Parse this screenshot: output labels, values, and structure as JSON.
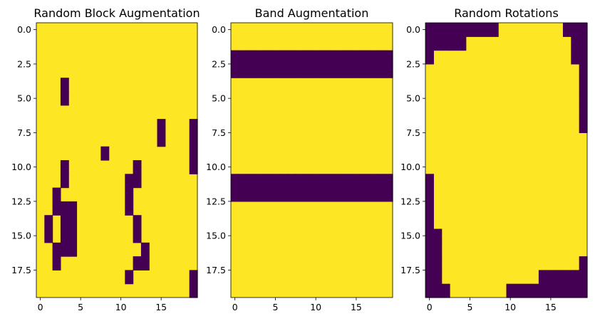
{
  "chart_data": [
    {
      "type": "heatmap",
      "title": "Random Block Augmentation",
      "rows": 20,
      "cols": 20,
      "xticks": [
        0,
        5,
        10,
        15
      ],
      "yticks": [
        0.0,
        2.5,
        5.0,
        7.5,
        10.0,
        12.5,
        15.0,
        17.5
      ],
      "xtick_labels": [
        "0",
        "5",
        "10",
        "15"
      ],
      "ytick_labels": [
        "0.0",
        "2.5",
        "5.0",
        "7.5",
        "10.0",
        "12.5",
        "15.0",
        "17.5"
      ],
      "colormap": {
        "0": "#440154",
        "1": "#fde725"
      },
      "grid": [
        "11111111111111111111",
        "11111111111111111111",
        "11111111111111111111",
        "11111111111111111111",
        "11101111111111111111",
        "11101111111111111111",
        "11111111111111111111",
        "11111111111111101110",
        "11111111111111101110",
        "11111111011111111110",
        "11101111111101111110",
        "11101111111001111111",
        "11011111111011111111",
        "11000111111011111111",
        "10100111111101111111",
        "10100111111101111111",
        "11000111111110111111",
        "11011111111100111111",
        "11111111111011111110",
        "11111111111111111110"
      ]
    },
    {
      "type": "heatmap",
      "title": "Band Augmentation",
      "rows": 20,
      "cols": 20,
      "xticks": [
        0,
        5,
        10,
        15
      ],
      "yticks": [
        0.0,
        2.5,
        5.0,
        7.5,
        10.0,
        12.5,
        15.0,
        17.5
      ],
      "xtick_labels": [
        "0",
        "5",
        "10",
        "15"
      ],
      "ytick_labels": [
        "0.0",
        "2.5",
        "5.0",
        "7.5",
        "10.0",
        "12.5",
        "15.0",
        "17.5"
      ],
      "colormap": {
        "0": "#440154",
        "1": "#fde725"
      },
      "grid": [
        "11111111111111111111",
        "11111111111111111111",
        "00000000000000000000",
        "00000000000000000000",
        "11111111111111111111",
        "11111111111111111111",
        "11111111111111111111",
        "11111111111111111111",
        "11111111111111111111",
        "11111111111111111111",
        "11111111111111111111",
        "00000000000000000000",
        "00000000000000000000",
        "11111111111111111111",
        "11111111111111111111",
        "11111111111111111111",
        "11111111111111111111",
        "11111111111111111111",
        "11111111111111111111",
        "11111111111111111111"
      ]
    },
    {
      "type": "heatmap",
      "title": "Random Rotations",
      "rows": 20,
      "cols": 20,
      "xticks": [
        0,
        5,
        10,
        15
      ],
      "yticks": [
        0.0,
        2.5,
        5.0,
        7.5,
        10.0,
        12.5,
        15.0,
        17.5
      ],
      "xtick_labels": [
        "0",
        "5",
        "10",
        "15"
      ],
      "ytick_labels": [
        "0.0",
        "2.5",
        "5.0",
        "7.5",
        "10.0",
        "12.5",
        "15.0",
        "17.5"
      ],
      "colormap": {
        "0": "#440154",
        "1": "#fde725"
      },
      "grid": [
        "00000000011111111000",
        "00000111111111111100",
        "01111111111111111100",
        "11111111111111111110",
        "11111111111111111110",
        "11111111111111111110",
        "11111111111111111110",
        "11111111111111111110",
        "11111111111111111111",
        "11111111111111111111",
        "11111111111111111111",
        "01111111111111111111",
        "01111111111111111111",
        "01111111111111111111",
        "01111111111111111111",
        "00111111111111111111",
        "00111111111111111111",
        "00111111111111111110",
        "00111111111111000000",
        "00011111110000000000"
      ]
    }
  ]
}
